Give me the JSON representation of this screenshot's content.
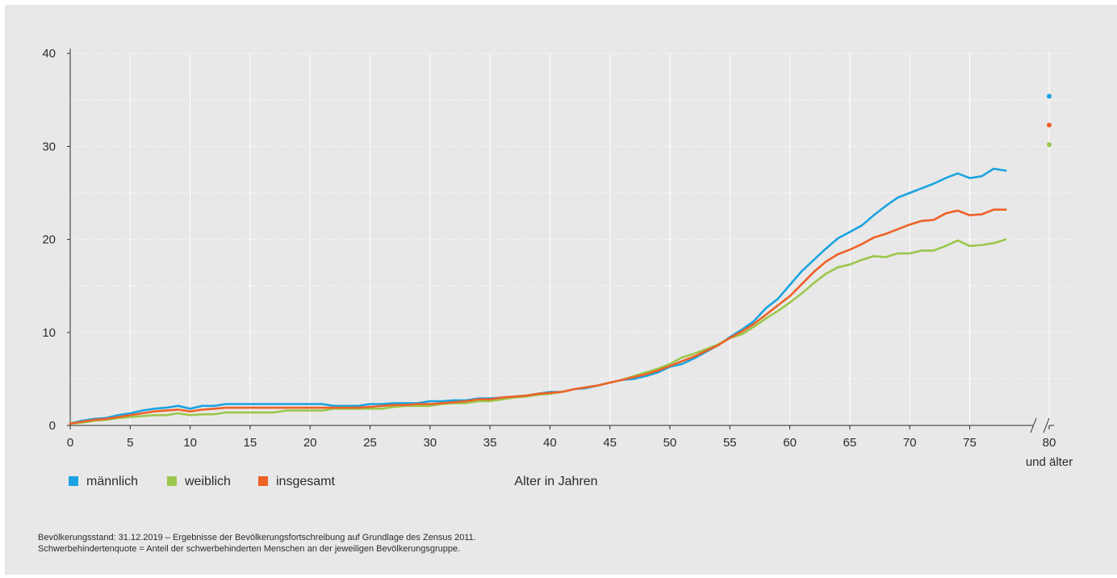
{
  "chart_data": {
    "type": "line",
    "title": "",
    "xlabel": "Alter in Jahren",
    "ylabel": "",
    "ylim": [
      0,
      40
    ],
    "xlim": [
      0,
      80
    ],
    "y_ticks": [
      0,
      10,
      20,
      30,
      40
    ],
    "x_ticks": [
      0,
      5,
      10,
      15,
      20,
      25,
      30,
      35,
      40,
      45,
      50,
      55,
      60,
      65,
      70,
      75,
      80
    ],
    "x_tick_labels": [
      "0",
      "5",
      "10",
      "15",
      "20",
      "25",
      "30",
      "35",
      "40",
      "45",
      "50",
      "55",
      "60",
      "65",
      "70",
      "75",
      "80"
    ],
    "x_last_label_extra": "und älter",
    "axis_break": true,
    "grid": true,
    "legend_position": "bottom-left",
    "x": [
      0,
      1,
      2,
      3,
      4,
      5,
      6,
      7,
      8,
      9,
      10,
      11,
      12,
      13,
      14,
      15,
      16,
      17,
      18,
      19,
      20,
      21,
      22,
      23,
      24,
      25,
      26,
      27,
      28,
      29,
      30,
      31,
      32,
      33,
      34,
      35,
      36,
      37,
      38,
      39,
      40,
      41,
      42,
      43,
      44,
      45,
      46,
      47,
      48,
      49,
      50,
      51,
      52,
      53,
      54,
      55,
      56,
      57,
      58,
      59,
      60,
      61,
      62,
      63,
      64,
      65,
      66,
      67,
      68,
      69,
      70,
      71,
      72,
      73,
      74,
      75,
      76,
      77,
      78
    ],
    "series": [
      {
        "name": "männlich",
        "color": "#1aa3e0",
        "values": [
          0.2,
          0.5,
          0.7,
          0.8,
          1.1,
          1.3,
          1.6,
          1.8,
          1.9,
          2.1,
          1.8,
          2.1,
          2.1,
          2.3,
          2.3,
          2.3,
          2.3,
          2.3,
          2.3,
          2.3,
          2.3,
          2.3,
          2.1,
          2.1,
          2.1,
          2.3,
          2.3,
          2.4,
          2.4,
          2.4,
          2.6,
          2.6,
          2.7,
          2.7,
          2.9,
          2.9,
          3.0,
          3.1,
          3.2,
          3.4,
          3.6,
          3.6,
          3.9,
          4.0,
          4.3,
          4.6,
          4.9,
          5.0,
          5.3,
          5.7,
          6.3,
          6.6,
          7.2,
          7.9,
          8.6,
          9.5,
          10.3,
          11.2,
          12.6,
          13.6,
          15.1,
          16.6,
          17.8,
          19.0,
          20.1,
          20.8,
          21.5,
          22.6,
          23.6,
          24.5,
          25.0,
          25.5,
          26.0,
          26.6,
          27.1,
          26.6,
          26.8,
          27.6,
          27.4
        ],
        "end_value": 35.4
      },
      {
        "name": "weiblich",
        "color": "#9bc74c",
        "values": [
          0.2,
          0.3,
          0.5,
          0.6,
          0.8,
          0.9,
          1.0,
          1.1,
          1.1,
          1.3,
          1.1,
          1.2,
          1.2,
          1.4,
          1.4,
          1.4,
          1.4,
          1.4,
          1.6,
          1.6,
          1.6,
          1.6,
          1.8,
          1.8,
          1.8,
          1.8,
          1.8,
          2.0,
          2.1,
          2.1,
          2.1,
          2.3,
          2.4,
          2.4,
          2.6,
          2.6,
          2.8,
          3.0,
          3.1,
          3.3,
          3.4,
          3.6,
          3.9,
          4.1,
          4.3,
          4.6,
          4.9,
          5.3,
          5.7,
          6.1,
          6.6,
          7.3,
          7.7,
          8.2,
          8.7,
          9.4,
          9.8,
          10.6,
          11.5,
          12.3,
          13.2,
          14.2,
          15.3,
          16.3,
          17.0,
          17.3,
          17.8,
          18.2,
          18.1,
          18.5,
          18.5,
          18.8,
          18.8,
          19.3,
          19.9,
          19.3,
          19.4,
          19.6,
          20.0
        ],
        "end_value": 30.2
      },
      {
        "name": "insgesamt",
        "color": "#ef6127",
        "values": [
          0.2,
          0.4,
          0.6,
          0.7,
          0.9,
          1.1,
          1.3,
          1.5,
          1.6,
          1.7,
          1.5,
          1.7,
          1.8,
          1.9,
          1.9,
          1.9,
          1.9,
          1.9,
          1.9,
          1.9,
          1.9,
          1.9,
          1.9,
          1.9,
          1.9,
          2.0,
          2.1,
          2.2,
          2.2,
          2.3,
          2.3,
          2.4,
          2.5,
          2.6,
          2.8,
          2.8,
          3.0,
          3.1,
          3.2,
          3.4,
          3.5,
          3.6,
          3.9,
          4.1,
          4.3,
          4.6,
          4.9,
          5.2,
          5.5,
          5.9,
          6.4,
          6.9,
          7.4,
          8.0,
          8.6,
          9.4,
          10.1,
          10.9,
          11.9,
          12.9,
          13.9,
          15.2,
          16.5,
          17.6,
          18.4,
          18.9,
          19.5,
          20.2,
          20.6,
          21.1,
          21.6,
          22.0,
          22.1,
          22.8,
          23.1,
          22.6,
          22.7,
          23.2,
          23.2
        ],
        "end_value": 32.3
      }
    ]
  },
  "notes": [
    "Bevölkerungsstand: 31.12.2019 – Ergebnisse der Bevölkerungsfortschreibung auf Grundlage des Zensus 2011.",
    "Schwerbehindertenquote = Anteil der schwerbehinderten Menschen an der jeweiligen Bevölkerungsgruppe."
  ]
}
